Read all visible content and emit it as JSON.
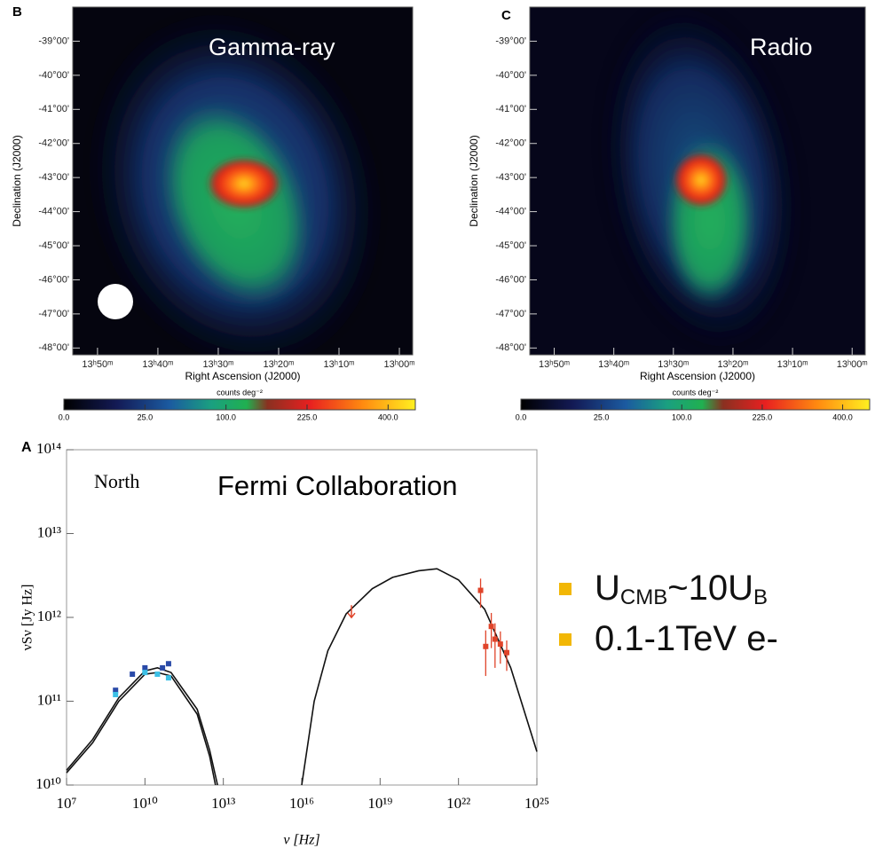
{
  "chart_data": [
    {
      "type": "map",
      "panel": "B",
      "title": "Gamma-ray",
      "xlabel": "Right Ascension (J2000)",
      "ylabel": "Declination (J2000)",
      "xlim": [
        54.1,
        -2.2
      ],
      "xticks": [
        {
          "value": 50,
          "label": "13ʰ50ᵐ"
        },
        {
          "value": 40,
          "label": "13ʰ40ᵐ"
        },
        {
          "value": 30,
          "label": "13ʰ30ᵐ"
        },
        {
          "value": 20,
          "label": "13ʰ20ᵐ"
        },
        {
          "value": 10,
          "label": "13ʰ10ᵐ"
        },
        {
          "value": 0,
          "label": "13ʰ00ᵐ"
        }
      ],
      "ylim": [
        -48.2,
        -38.0
      ],
      "yticks": [
        {
          "value": -39,
          "label": "-39°00'"
        },
        {
          "value": -40,
          "label": "-40°00'"
        },
        {
          "value": -41,
          "label": "-41°00'"
        },
        {
          "value": -42,
          "label": "-42°00'"
        },
        {
          "value": -43,
          "label": "-43°00'"
        },
        {
          "value": -44,
          "label": "-44°00'"
        },
        {
          "value": -45,
          "label": "-45°00'"
        },
        {
          "value": -46,
          "label": "-46°00'"
        },
        {
          "value": -47,
          "label": "-47°00'"
        },
        {
          "value": -48,
          "label": "-48°00'"
        }
      ],
      "colorbar": {
        "label": "counts deg⁻²",
        "scale": "sqrt",
        "lim": [
          0,
          470
        ],
        "ticks": [
          {
            "value": 0,
            "label": "0.0"
          },
          {
            "value": 25,
            "label": "25.0"
          },
          {
            "value": 100,
            "label": "100.0"
          },
          {
            "value": 225,
            "label": "225.0"
          },
          {
            "value": 400,
            "label": "400.0"
          }
        ]
      }
    },
    {
      "type": "map",
      "panel": "C",
      "title": "Radio",
      "xlabel": "Right Ascension (J2000)",
      "ylabel": "Declination (J2000)",
      "xlim": [
        54.1,
        -2.2
      ],
      "xticks": [
        {
          "value": 50,
          "label": "13ʰ50ᵐ"
        },
        {
          "value": 40,
          "label": "13ʰ40ᵐ"
        },
        {
          "value": 30,
          "label": "13ʰ30ᵐ"
        },
        {
          "value": 20,
          "label": "13ʰ20ᵐ"
        },
        {
          "value": 10,
          "label": "13ʰ10ᵐ"
        },
        {
          "value": 0,
          "label": "13ʰ00ᵐ"
        }
      ],
      "ylim": [
        -48.2,
        -38.0
      ],
      "yticks": [
        {
          "value": -39,
          "label": "-39°00'"
        },
        {
          "value": -40,
          "label": "-40°00'"
        },
        {
          "value": -41,
          "label": "-41°00'"
        },
        {
          "value": -42,
          "label": "-42°00'"
        },
        {
          "value": -43,
          "label": "-43°00'"
        },
        {
          "value": -44,
          "label": "-44°00'"
        },
        {
          "value": -45,
          "label": "-45°00'"
        },
        {
          "value": -46,
          "label": "-46°00'"
        },
        {
          "value": -47,
          "label": "-47°00'"
        },
        {
          "value": -48,
          "label": "-48°00'"
        }
      ],
      "colorbar": {
        "label": "counts deg⁻²",
        "scale": "sqrt",
        "lim": [
          0,
          470
        ],
        "ticks": [
          {
            "value": 0,
            "label": "0.0"
          },
          {
            "value": 25,
            "label": "25.0"
          },
          {
            "value": 100,
            "label": "100.0"
          },
          {
            "value": 225,
            "label": "225.0"
          },
          {
            "value": 400,
            "label": "400.0"
          }
        ]
      }
    },
    {
      "type": "line",
      "panel": "A",
      "annotations": [
        "North",
        "Fermi Collaboration"
      ],
      "xlabel": "ν [Hz]",
      "ylabel": "νSν [Jy Hz]",
      "log_x": true,
      "log_y": true,
      "xlim": [
        10000000.0,
        1e+25
      ],
      "xticks": [
        {
          "value": 10000000.0,
          "label": "10⁷"
        },
        {
          "value": 10000000000.0,
          "label": "10¹⁰"
        },
        {
          "value": 10000000000000.0,
          "label": "10¹³"
        },
        {
          "value": 1e+16,
          "label": "10¹⁶"
        },
        {
          "value": 1e+19,
          "label": "10¹⁹"
        },
        {
          "value": 1e+22,
          "label": "10²²"
        },
        {
          "value": 1e+25,
          "label": "10²⁵"
        }
      ],
      "ylim": [
        10000000000.0,
        100000000000000.0
      ],
      "yticks": [
        {
          "value": 10000000000.0,
          "label": "10¹⁰"
        },
        {
          "value": 100000000000.0,
          "label": "10¹¹"
        },
        {
          "value": 1000000000000.0,
          "label": "10¹²"
        },
        {
          "value": 10000000000000.0,
          "label": "10¹³"
        },
        {
          "value": 100000000000000.0,
          "label": "10¹⁴"
        }
      ],
      "series": [
        {
          "style": "line",
          "color": "#111111",
          "x": [
            10000000.0,
            100000000.0,
            1000000000.0,
            10000000000.0,
            30000000000.0,
            100000000000.0,
            1000000000000.0,
            3000000000000.0,
            6000000000000.0
          ],
          "values": [
            15000000000.0,
            35000000000.0,
            110000000000.0,
            230000000000.0,
            250000000000.0,
            220000000000.0,
            80000000000.0,
            26000000000.0,
            10000000000.0
          ]
        },
        {
          "style": "line",
          "color": "#111111",
          "x": [
            10000000.0,
            100000000.0,
            1000000000.0,
            10000000000.0,
            30000000000.0,
            100000000000.0,
            1000000000000.0,
            3000000000000.0,
            5000000000000.0
          ],
          "values": [
            14000000000.0,
            32000000000.0,
            100000000000.0,
            210000000000.0,
            220000000000.0,
            200000000000.0,
            70000000000.0,
            22000000000.0,
            10000000000.0
          ]
        },
        {
          "style": "line",
          "color": "#111111",
          "x": [
            1e+16,
            3e+16,
            1e+17,
            5e+17,
            5e+18,
            3e+19,
            3e+20,
            1.5e+21,
            1e+22,
            1e+23,
            1e+24,
            1e+25
          ],
          "values": [
            10000000000.0,
            100000000000.0,
            400000000000.0,
            1100000000000.0,
            2200000000000.0,
            3000000000000.0,
            3600000000000.0,
            3800000000000.0,
            2800000000000.0,
            1250000000000.0,
            250000000000.0,
            25000000000.0
          ]
        },
        {
          "style": "points",
          "color": "#2a4aa8",
          "x": [
            750000000.0,
            3300000000.0,
            10000000000.0,
            47000000000.0,
            80000000000.0
          ],
          "values": [
            135000000000.0,
            210000000000.0,
            250000000000.0,
            250000000000.0,
            280000000000.0
          ]
        },
        {
          "style": "points",
          "color": "#3cc0e6",
          "x": [
            750000000.0,
            10000000000.0,
            30000000000.0,
            80000000000.0
          ],
          "values": [
            120000000000.0,
            220000000000.0,
            210000000000.0,
            190000000000.0
          ]
        },
        {
          "style": "points",
          "color": "#e0442a",
          "x": [
            7e+22,
            1.1e+23,
            1.8e+23,
            2.5e+23,
            4e+23,
            7e+23
          ],
          "values": [
            2100000000000.0,
            450000000000.0,
            780000000000.0,
            550000000000.0,
            480000000000.0,
            380000000000.0
          ],
          "errors": [
            800000000000.0,
            250000000000.0,
            350000000000.0,
            300000000000.0,
            200000000000.0,
            150000000000.0
          ]
        },
        {
          "style": "upper-limit",
          "color": "#e0442a",
          "x": [
            8e+17
          ],
          "values": [
            1400000000000.0
          ]
        }
      ]
    }
  ],
  "bullets": [
    {
      "parts": [
        {
          "text": "U"
        },
        {
          "text": "CMB",
          "sub": true
        },
        {
          "text": "~10U"
        },
        {
          "text": "B",
          "sub": true
        }
      ]
    },
    {
      "parts": [
        {
          "text": "0.1-1TeV e-"
        }
      ]
    }
  ]
}
